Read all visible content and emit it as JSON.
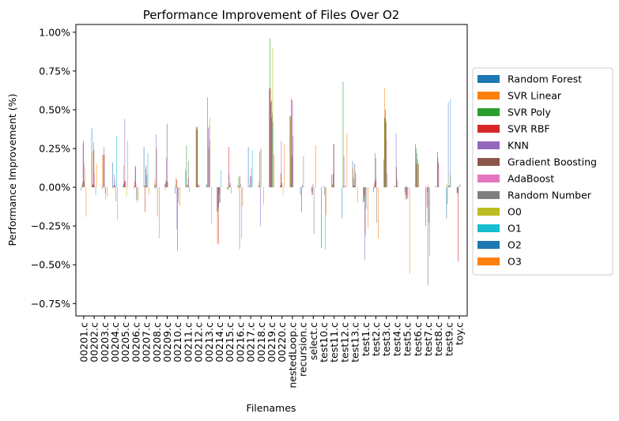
{
  "chart_data": {
    "type": "bar",
    "title": "Performance Improvement of Files Over O2",
    "xlabel": "Filenames",
    "ylabel": "Performance Improvement (%)",
    "ylim": [
      -0.83,
      1.05
    ],
    "yticks": [
      -0.75,
      -0.5,
      -0.25,
      0.0,
      0.25,
      0.5,
      0.75,
      1.0
    ],
    "ytick_labels": [
      "−0.75%",
      "−0.50%",
      "−0.25%",
      "0.00%",
      "0.25%",
      "0.50%",
      "0.75%",
      "1.00%"
    ],
    "grid": false,
    "legend_position": "right, outside plot",
    "categories": [
      "00201.c",
      "00202.c",
      "00203.c",
      "00204.c",
      "00205.c",
      "00206.c",
      "00207.c",
      "00208.c",
      "00209.c",
      "00210.c",
      "00211.c",
      "00212.c",
      "00213.c",
      "00214.c",
      "00215.c",
      "00216.c",
      "00217.c",
      "00218.c",
      "00219.c",
      "00220.c",
      "nestedLoop.c",
      "recursion.c",
      "select.c",
      "test10.c",
      "test11.c",
      "test12.c",
      "test13.c",
      "test1.c",
      "test2.c",
      "test3.c",
      "test4.c",
      "test5.c",
      "test6.c",
      "test7.c",
      "test8.c",
      "test9.c",
      "toy.c"
    ],
    "series": [
      {
        "name": "Random Forest",
        "color": "#1f77b4",
        "values": [
          -0.02,
          0.38,
          -0.01,
          0.16,
          0.01,
          0.0,
          0.26,
          0.01,
          0.02,
          -0.04,
          0.11,
          0.39,
          0.02,
          -0.16,
          -0.01,
          0.01,
          0.26,
          0.01,
          0.64,
          0.0,
          0.46,
          -0.05,
          0.0,
          -0.39,
          0.08,
          -0.2,
          0.17,
          -0.1,
          -0.03,
          0.18,
          0.01,
          -0.03,
          0.28,
          -0.25,
          0.01,
          -0.2,
          -0.04
        ]
      },
      {
        "name": "SVR Linear",
        "color": "#ff7f0e",
        "values": [
          0.0,
          0.23,
          0.21,
          -0.01,
          0.14,
          -0.01,
          0.01,
          0.05,
          -0.02,
          0.06,
          0.01,
          0.38,
          0.01,
          -0.36,
          -0.02,
          -0.01,
          0.0,
          0.03,
          0.62,
          0.01,
          0.45,
          0.0,
          0.0,
          0.0,
          0.01,
          0.0,
          0.12,
          0.0,
          0.02,
          0.64,
          0.01,
          -0.08,
          0.0,
          0.01,
          0.0,
          0.02,
          -0.03
        ]
      },
      {
        "name": "SVR Poly",
        "color": "#2ca02c",
        "values": [
          0.02,
          0.01,
          0.0,
          0.01,
          0.02,
          0.01,
          0.01,
          -0.01,
          0.04,
          0.01,
          0.27,
          0.37,
          0.58,
          -0.15,
          -0.01,
          0.07,
          0.0,
          0.23,
          0.96,
          0.01,
          0.46,
          0.0,
          -0.03,
          0.0,
          0.02,
          0.68,
          0.06,
          -0.09,
          -0.01,
          0.45,
          0.0,
          0.01,
          0.25,
          0.0,
          0.0,
          -0.11,
          -0.04
        ]
      },
      {
        "name": "SVR RBF",
        "color": "#d62728",
        "values": [
          0.03,
          0.02,
          0.21,
          0.01,
          0.04,
          0.04,
          -0.16,
          0.02,
          0.03,
          0.05,
          0.01,
          0.39,
          0.0,
          -0.37,
          0.26,
          0.01,
          0.01,
          0.0,
          0.64,
          0.09,
          0.57,
          -0.16,
          -0.05,
          0.0,
          0.09,
          0.01,
          0.01,
          -0.06,
          0.04,
          0.5,
          0.0,
          -0.05,
          0.15,
          -0.13,
          0.23,
          0.0,
          -0.48
        ]
      },
      {
        "name": "KNN",
        "color": "#9467bd",
        "values": [
          0.28,
          0.29,
          0.26,
          0.08,
          0.44,
          0.14,
          0.12,
          0.34,
          0.19,
          -0.27,
          0.02,
          0.01,
          0.38,
          -0.13,
          0.08,
          -0.4,
          0.07,
          -0.25,
          0.55,
          0.3,
          0.56,
          0.01,
          -0.05,
          0.0,
          0.28,
          0.2,
          0.01,
          -0.47,
          0.22,
          0.44,
          0.35,
          -0.07,
          0.22,
          -0.03,
          0.19,
          0.55,
          0.01
        ]
      },
      {
        "name": "Gradient Boosting",
        "color": "#8c564b",
        "values": [
          0.3,
          0.24,
          0.21,
          0.01,
          0.04,
          0.13,
          0.14,
          0.25,
          0.41,
          -0.41,
          0.0,
          0.02,
          0.25,
          -0.1,
          0.01,
          0.07,
          0.0,
          0.25,
          0.56,
          0.03,
          0.2,
          0.01,
          0.02,
          0.01,
          0.28,
          0.0,
          0.15,
          -0.31,
          0.19,
          0.42,
          0.13,
          -0.08,
          0.18,
          -0.63,
          0.16,
          0.01,
          0.0
        ]
      },
      {
        "name": "AdaBoost",
        "color": "#e377c2",
        "values": [
          0.16,
          0.09,
          0.0,
          0.04,
          0.04,
          0.02,
          0.01,
          0.0,
          0.04,
          -0.06,
          0.06,
          0.01,
          0.4,
          -0.04,
          0.02,
          0.0,
          0.12,
          0.0,
          0.45,
          0.02,
          0.56,
          0.0,
          0.0,
          0.0,
          0.01,
          0.01,
          0.1,
          -0.04,
          0.05,
          0.31,
          0.01,
          -0.01,
          0.14,
          0.02,
          0.15,
          0.01,
          0.0
        ]
      },
      {
        "name": "Random Number",
        "color": "#7f7f7f",
        "values": [
          0.04,
          0.01,
          -0.04,
          -0.09,
          0.0,
          -0.08,
          0.08,
          -0.19,
          0.0,
          -0.1,
          0.17,
          0.0,
          0.3,
          -0.1,
          0.03,
          0.02,
          0.07,
          0.0,
          0.48,
          0.0,
          0.33,
          0.2,
          -0.3,
          -0.05,
          0.0,
          0.01,
          0.09,
          -0.14,
          -0.23,
          0.09,
          0.05,
          -0.07,
          0.16,
          -0.23,
          0.0,
          0.01,
          0.02
        ]
      },
      {
        "name": "O0",
        "color": "#bcbd22",
        "values": [
          0.13,
          0.0,
          -0.08,
          0.0,
          -0.06,
          0.0,
          0.01,
          0.0,
          0.03,
          0.0,
          0.01,
          0.02,
          0.45,
          0.0,
          0.0,
          0.0,
          0.0,
          0.0,
          0.9,
          -0.05,
          0.0,
          0.0,
          0.0,
          0.0,
          0.0,
          0.0,
          0.0,
          0.0,
          0.0,
          0.0,
          0.0,
          0.0,
          0.15,
          0.0,
          0.0,
          0.08,
          0.0
        ]
      },
      {
        "name": "O1",
        "color": "#17becf",
        "values": [
          0.0,
          -0.05,
          0.0,
          0.33,
          0.0,
          -0.1,
          0.22,
          0.0,
          0.0,
          0.0,
          -0.03,
          0.0,
          0.0,
          0.11,
          -0.04,
          -0.33,
          0.24,
          0.0,
          0.42,
          0.0,
          0.0,
          0.0,
          0.0,
          -0.4,
          0.0,
          0.0,
          0.0,
          0.0,
          0.0,
          0.0,
          0.0,
          0.0,
          0.0,
          -0.44,
          0.0,
          0.57,
          0.0
        ]
      },
      {
        "name": "O2",
        "color": "#1f77b4",
        "values": [
          0.0,
          0.0,
          0.0,
          0.0,
          0.0,
          0.0,
          0.0,
          0.0,
          0.0,
          0.0,
          0.0,
          0.0,
          0.0,
          0.0,
          0.0,
          0.0,
          0.0,
          0.0,
          0.0,
          0.0,
          0.0,
          0.0,
          0.0,
          0.0,
          0.0,
          0.0,
          0.0,
          0.0,
          0.0,
          0.0,
          0.0,
          0.0,
          0.0,
          0.0,
          0.0,
          0.0,
          0.0
        ]
      },
      {
        "name": "O3",
        "color": "#ff7f0e",
        "values": [
          -0.19,
          0.15,
          -0.06,
          -0.21,
          0.3,
          -0.08,
          -0.05,
          -0.33,
          0.0,
          -0.12,
          0.0,
          0.0,
          -0.24,
          0.0,
          0.0,
          -0.12,
          0.0,
          -0.11,
          0.21,
          0.28,
          0.0,
          0.0,
          0.27,
          -0.18,
          0.0,
          0.35,
          -0.1,
          -0.26,
          -0.33,
          0.0,
          0.0,
          -0.56,
          0.0,
          0.0,
          0.0,
          0.0,
          0.0
        ]
      }
    ]
  }
}
